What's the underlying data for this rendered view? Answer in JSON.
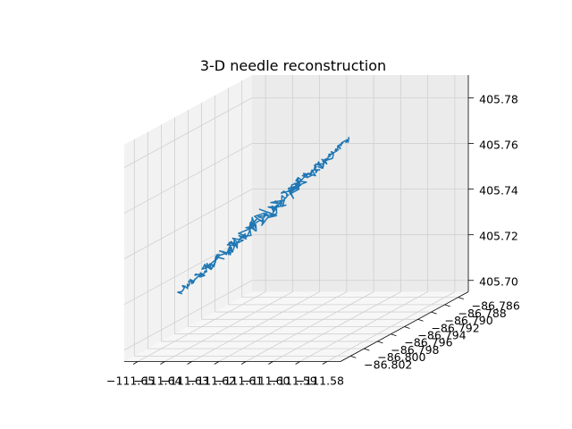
{
  "chart_data": {
    "type": "line3d",
    "title": "3-D needle reconstruction",
    "xlabel": "",
    "ylabel": "",
    "zlabel": "",
    "grid": true,
    "line_color": "#1f77b4",
    "x_ticks": [
      "−111.65",
      "−111.64",
      "−111.63",
      "−111.62",
      "−111.61",
      "−111.60",
      "−111.59",
      "−111.58"
    ],
    "y_ticks": [
      "−86.802",
      "−86.800",
      "−86.798",
      "−86.796",
      "−86.794",
      "−86.792",
      "−86.790",
      "−86.788",
      "−86.786"
    ],
    "z_ticks": [
      "405.70",
      "405.72",
      "405.74",
      "405.76",
      "405.78"
    ],
    "xlim": [
      -111.655,
      -111.575
    ],
    "ylim": [
      -86.8035,
      -86.7845
    ],
    "zlim": [
      405.695,
      405.79
    ],
    "series": [
      {
        "start": [
          -111.615,
          -86.786,
          405.765
        ],
        "end": [
          -111.641,
          -86.801,
          405.721
        ],
        "jitter": [
          0.004,
          0.0009,
          0.004
        ],
        "samples": 260
      }
    ]
  }
}
